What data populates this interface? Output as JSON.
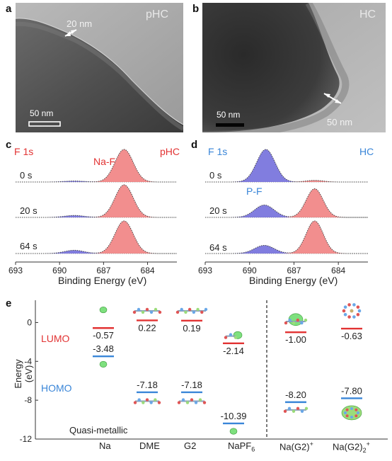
{
  "panel_labels": {
    "a": "a",
    "b": "b",
    "c": "c",
    "d": "d",
    "e": "e"
  },
  "panel_a": {
    "title": "pHC",
    "thickness_label": "20 nm",
    "scale_bar": "50 nm"
  },
  "panel_b": {
    "title": "HC",
    "thickness_label": "50 nm",
    "scale_bar": "50 nm"
  },
  "xps": {
    "x_ticks": [
      "693",
      "690",
      "687",
      "684"
    ],
    "x_label": "Binding Energy (eV)",
    "panel_c": {
      "element": "F 1s",
      "sample": "pHC",
      "peak_label": "Na-F",
      "times": [
        "0 s",
        "20 s",
        "64 s"
      ]
    },
    "panel_d": {
      "element": "F 1s",
      "sample": "HC",
      "peak_label": "P-F",
      "times": [
        "0 s",
        "20 s",
        "64 s"
      ]
    }
  },
  "energy": {
    "y_label": "Energy (eV)",
    "y_ticks": [
      "0",
      "-4",
      "-8",
      "-12"
    ],
    "lumo_label": "LUMO",
    "homo_label": "HOMO",
    "quasi_label": "Quasi-metallic",
    "x_labels": [
      "Na",
      "DME",
      "G2",
      "NaPF",
      "Na(G2)",
      "Na(G2)"
    ],
    "x_label_sub_napf": "6",
    "x_label_sup_nag2": "+",
    "x_label_sub_nag22": "2",
    "x_label_sup_nag22": "+",
    "lumo_values": [
      "-0.57",
      "0.22",
      "0.19",
      "-2.14",
      "-1.00",
      "-0.63"
    ],
    "homo_values": [
      "-3.48",
      "-7.18",
      "-7.18",
      "-10.39",
      "-8.20",
      "-7.80"
    ]
  },
  "chart_data": [
    {
      "type": "line",
      "title": "F 1s pHC",
      "xlabel": "Binding Energy (eV)",
      "xlim": [
        693,
        682
      ],
      "series": [
        {
          "name": "0 s",
          "peaks": [
            {
              "label": "Na-F",
              "center": 685.6,
              "height": 1.0,
              "width": 1.4
            },
            {
              "center": 689.0,
              "height": 0.03,
              "width": 1.5
            }
          ]
        },
        {
          "name": "20 s",
          "peaks": [
            {
              "label": "Na-F",
              "center": 685.6,
              "height": 1.0,
              "width": 1.4
            },
            {
              "center": 689.0,
              "height": 0.06,
              "width": 1.5
            }
          ]
        },
        {
          "name": "64 s",
          "peaks": [
            {
              "label": "Na-F",
              "center": 685.6,
              "height": 1.0,
              "width": 1.4
            },
            {
              "center": 689.0,
              "height": 0.1,
              "width": 1.5
            }
          ]
        }
      ]
    },
    {
      "type": "line",
      "title": "F 1s HC",
      "xlabel": "Binding Energy (eV)",
      "xlim": [
        693,
        682
      ],
      "series": [
        {
          "name": "0 s",
          "peaks": [
            {
              "label": "P-F",
              "center": 688.9,
              "height": 1.0,
              "width": 1.4
            },
            {
              "label": "Na-F",
              "center": 685.6,
              "height": 0.05,
              "width": 1.3
            }
          ]
        },
        {
          "name": "20 s",
          "peaks": [
            {
              "label": "P-F",
              "center": 689.0,
              "height": 0.38,
              "width": 1.5
            },
            {
              "label": "Na-F",
              "center": 685.6,
              "height": 0.88,
              "width": 1.3
            }
          ]
        },
        {
          "name": "64 s",
          "peaks": [
            {
              "label": "P-F",
              "center": 689.0,
              "height": 0.25,
              "width": 1.5
            },
            {
              "label": "Na-F",
              "center": 685.6,
              "height": 1.0,
              "width": 1.3
            }
          ]
        }
      ]
    },
    {
      "type": "scatter",
      "title": "",
      "ylabel": "Energy (eV)",
      "ylim": [
        -12,
        2
      ],
      "categories": [
        "Na",
        "DME",
        "G2",
        "NaPF6",
        "Na(G2)+",
        "Na(G2)2+"
      ],
      "series": [
        {
          "name": "LUMO",
          "values": [
            -0.57,
            0.22,
            0.19,
            -2.14,
            -1.0,
            -0.63
          ]
        },
        {
          "name": "HOMO",
          "values": [
            -3.48,
            -7.18,
            -7.18,
            -10.39,
            -8.2,
            -7.8
          ]
        }
      ]
    }
  ]
}
